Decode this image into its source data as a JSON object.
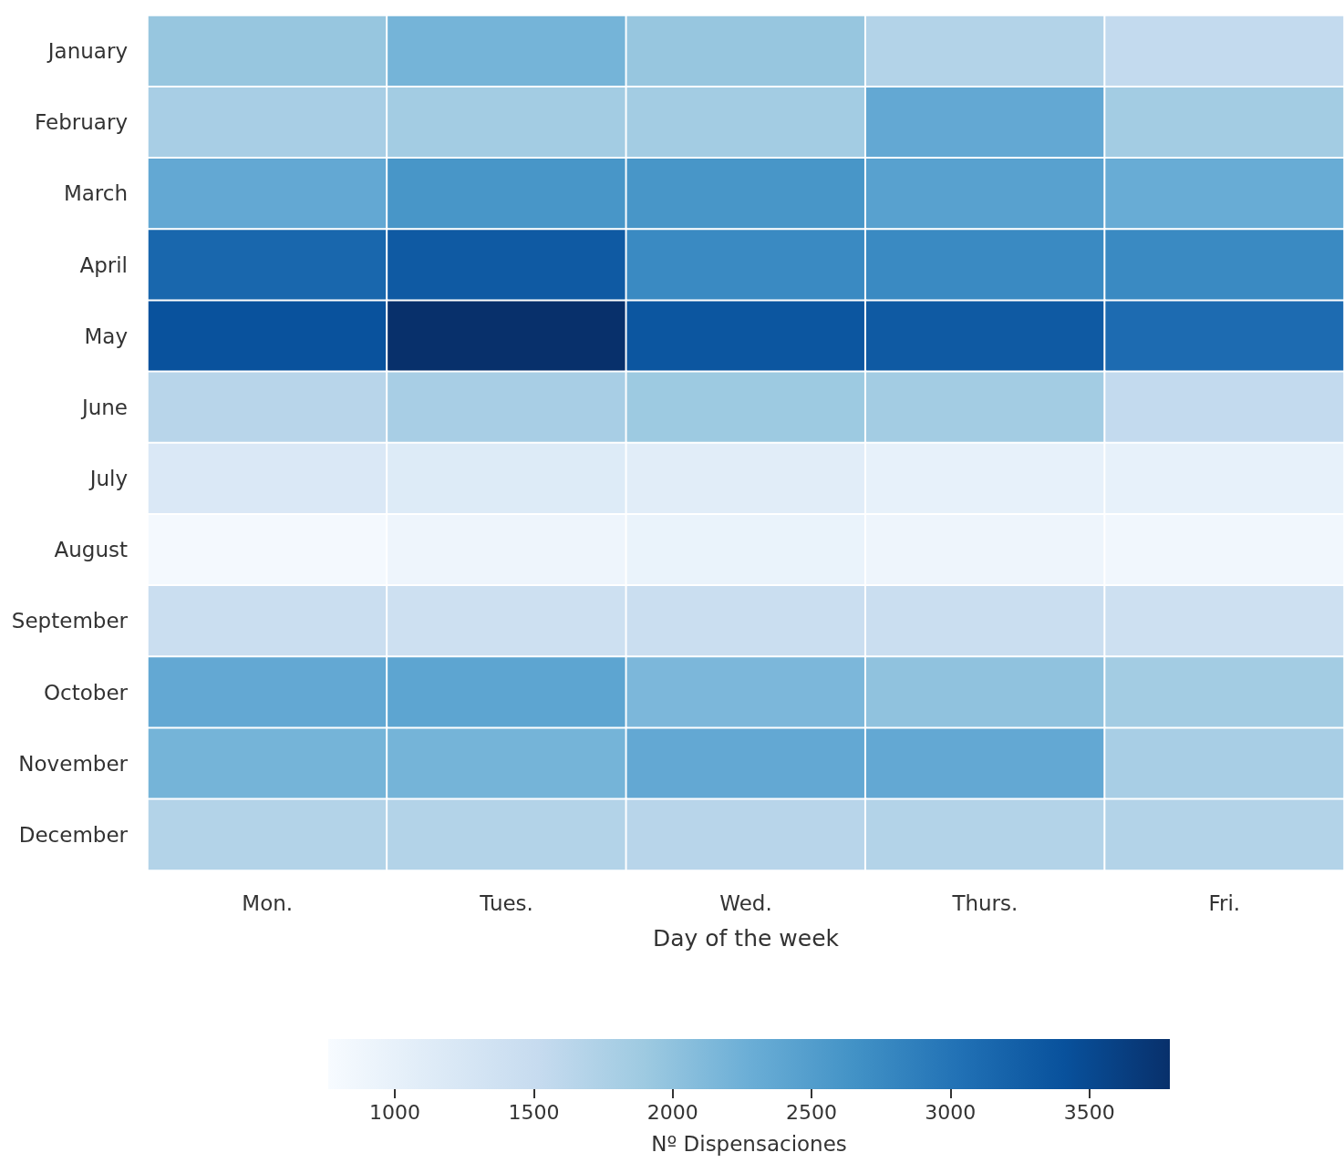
{
  "chart_data": {
    "type": "heatmap",
    "xlabel": "Day of the week",
    "clabel": "Nº Dispensaciones",
    "categories": [
      "Mon.",
      "Tues.",
      "Wed.",
      "Thurs.",
      "Fri."
    ],
    "y_categories": [
      "January",
      "February",
      "March",
      "April",
      "May",
      "June",
      "July",
      "August",
      "September",
      "October",
      "November",
      "December"
    ],
    "cells": [
      [
        1950,
        2200,
        1950,
        1700,
        1550
      ],
      [
        1800,
        1850,
        1850,
        2350,
        1850
      ],
      [
        2350,
        2600,
        2600,
        2450,
        2300
      ],
      [
        3150,
        3300,
        2750,
        2750,
        2750
      ],
      [
        3400,
        3790,
        3350,
        3300,
        3100
      ],
      [
        1650,
        1800,
        1900,
        1850,
        1550
      ],
      [
        1200,
        1150,
        1100,
        1000,
        1000
      ],
      [
        800,
        900,
        950,
        900,
        850
      ],
      [
        1450,
        1400,
        1450,
        1450,
        1400
      ],
      [
        2350,
        2400,
        2150,
        2000,
        1850
      ],
      [
        2200,
        2200,
        2350,
        2350,
        1800
      ],
      [
        1700,
        1700,
        1650,
        1700,
        1700
      ]
    ],
    "clim": [
      760,
      3790
    ],
    "cticks": [
      1000,
      1500,
      2000,
      2500,
      3000,
      3500
    ]
  }
}
